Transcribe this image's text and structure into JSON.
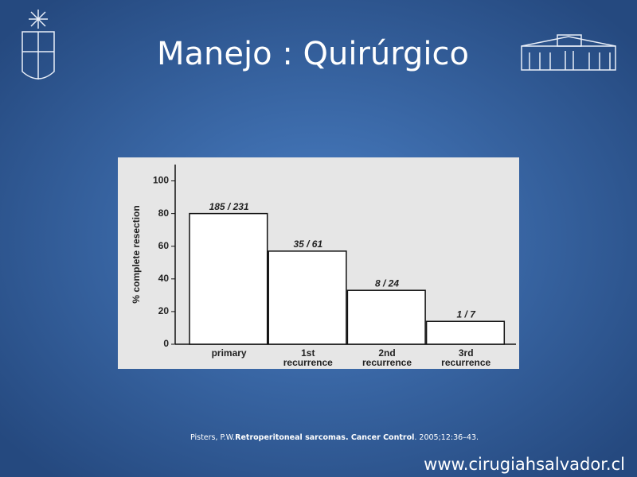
{
  "title": "Manejo : Quirúrgico",
  "chart_data": {
    "type": "bar",
    "y_label": "% complete resection",
    "categories": [
      "primary",
      "1st recurrence",
      "2nd recurrence",
      "3rd recurrence"
    ],
    "values": [
      80,
      57,
      33,
      14
    ],
    "bar_annotations": [
      "185 / 231",
      "35 / 61",
      "8 / 24",
      "1 / 7"
    ],
    "color": "#ffffff",
    "ylim": [
      0,
      110
    ],
    "yticks": [
      0,
      20,
      40,
      60,
      80,
      100
    ]
  },
  "citation": {
    "author": "Pisters, P.W.",
    "work": "Retroperitoneal sarcomas. Cancer Control",
    "details": ". 2005;12:36–43."
  },
  "footer": "www.cirugiahsalvador.cl"
}
